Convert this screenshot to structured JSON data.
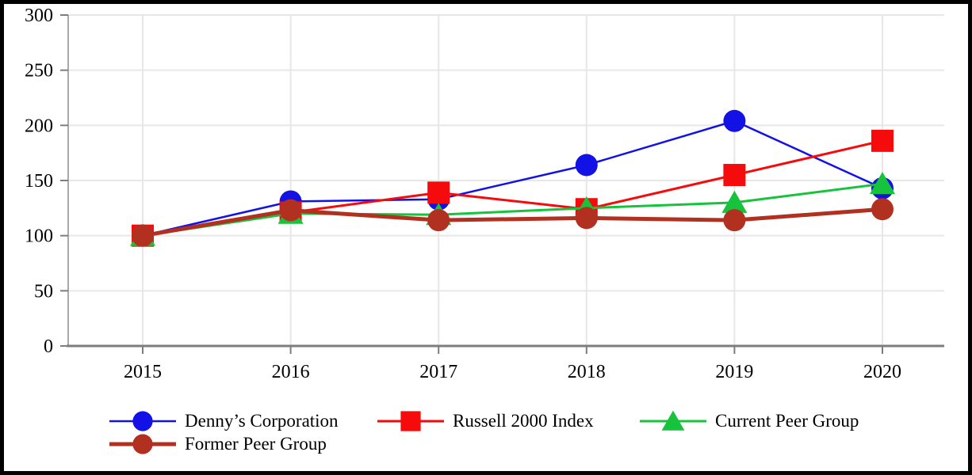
{
  "chart_data": {
    "type": "line",
    "title": "",
    "xlabel": "",
    "ylabel": "",
    "x_categories": [
      "2015",
      "2016",
      "2017",
      "2018",
      "2019",
      "2020"
    ],
    "y_ticks": [
      0,
      50,
      100,
      150,
      200,
      250,
      300
    ],
    "ylim": [
      0,
      300
    ],
    "grid": true,
    "legend_position": "bottom-left",
    "series": [
      {
        "name": "Denny’s Corporation",
        "color": "#1212e6",
        "marker": "circle",
        "values": [
          100,
          131,
          133,
          164,
          204,
          143
        ]
      },
      {
        "name": "Russell 2000 Index",
        "color": "#f50b0b",
        "marker": "square",
        "values": [
          100,
          121,
          139,
          124,
          155,
          186
        ]
      },
      {
        "name": "Current Peer Group",
        "color": "#17c23c",
        "marker": "triangle",
        "values": [
          100,
          120,
          119,
          125,
          130,
          147
        ]
      },
      {
        "name": "Former Peer Group",
        "color": "#b23020",
        "marker": "circle",
        "values": [
          100,
          123,
          114,
          116,
          114,
          124
        ]
      }
    ]
  }
}
